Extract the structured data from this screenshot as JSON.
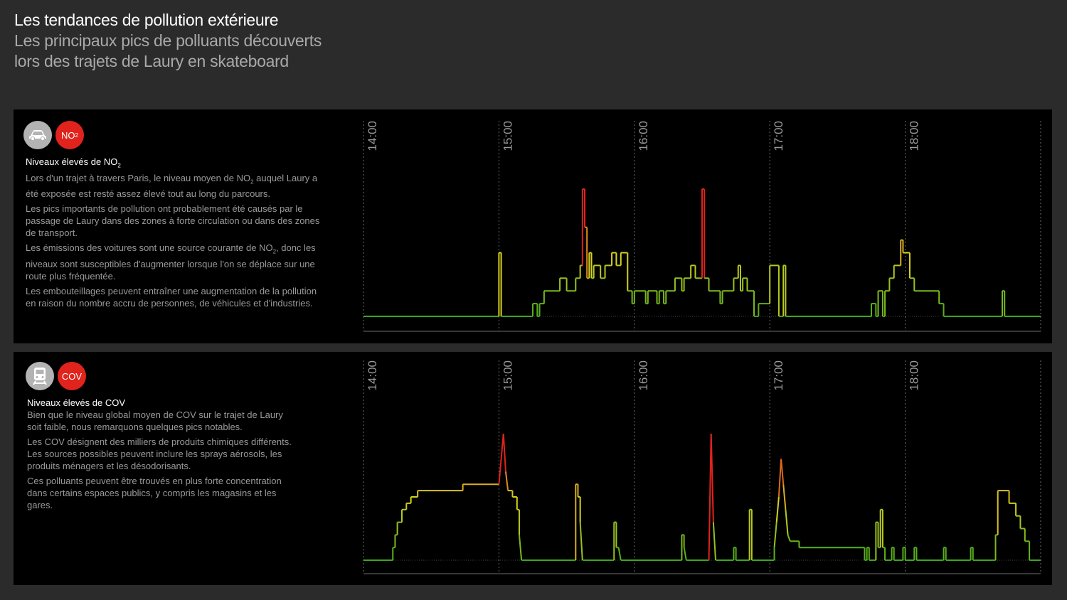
{
  "header": {
    "title": "Les tendances de pollution extérieure",
    "subtitle_line1": "Les principaux pics de polluants découverts",
    "subtitle_line2": "lors des trajets de Laury en skateboard"
  },
  "panels": [
    {
      "icon": "car-icon",
      "badge_label": "NO",
      "badge_sub": "2",
      "heading_main": "Niveaux élevés de NO",
      "heading_sub": "2",
      "p1_a": "Lors d'un trajet à travers Paris, le niveau moyen de NO",
      "p1_sub": "2",
      "p1_b": " auquel Laury a été exposée est resté assez élevé tout au long du parcours.",
      "p2": "Les pics importants de pollution ont probablement été causés par le passage de Laury dans des zones à forte circulation ou dans des zones de transport.",
      "p3_a": "Les émissions des voitures sont une source courante de NO",
      "p3_sub": "2",
      "p3_b": ", donc les niveaux sont susceptibles d'augmenter lorsque l'on se déplace sur une route plus fréquentée.",
      "p4": "Les embouteillages peuvent entraîner une augmentation de la pollution en raison du nombre accru de personnes, de véhicules et d'industries."
    },
    {
      "icon": "train-icon",
      "badge_label": "COV",
      "heading_main": "Niveaux élevés de COV",
      "p1": "Bien que le niveau global moyen de COV sur le trajet de Laury soit faible, nous remarquons quelques pics notables.",
      "p2": "Les COV désignent des milliers de produits chimiques différents. Les sources possibles peuvent inclure les sprays aérosols, les produits ménagers et les désodorisants.",
      "p3": "Ces polluants peuvent être trouvés en plus forte concentration dans certains espaces publics, y compris  les magasins et les gares."
    }
  ],
  "colors": {
    "low": "#3aa81c",
    "mid": "#d7d21e",
    "high": "#e0231c",
    "badge_red": "#e0231c",
    "grid": "#6b6b6b"
  },
  "chart_data": [
    {
      "type": "line",
      "series_name": "NO2",
      "x_ticks": [
        "14:00",
        "15:00",
        "16:00",
        "17:00",
        "18:00"
      ],
      "x_range": [
        "14:00",
        "19:00"
      ],
      "y_range": [
        0,
        1
      ],
      "grid": "vertical dashed at each hour",
      "points": [
        [
          "14:00",
          0.0
        ],
        [
          "15:00",
          0.0
        ],
        [
          "15:00",
          0.5
        ],
        [
          "15:01",
          0.5
        ],
        [
          "15:01",
          0.0
        ],
        [
          "15:15",
          0.0
        ],
        [
          "15:15",
          0.1
        ],
        [
          "15:17",
          0.1
        ],
        [
          "15:17",
          0.0
        ],
        [
          "15:18",
          0.0
        ],
        [
          "15:18",
          0.1
        ],
        [
          "15:20",
          0.1
        ],
        [
          "15:20",
          0.2
        ],
        [
          "15:27",
          0.2
        ],
        [
          "15:27",
          0.3
        ],
        [
          "15:30",
          0.3
        ],
        [
          "15:30",
          0.2
        ],
        [
          "15:34",
          0.2
        ],
        [
          "15:34",
          0.3
        ],
        [
          "15:36",
          0.3
        ],
        [
          "15:36",
          0.4
        ],
        [
          "15:37",
          0.4
        ],
        [
          "15:37",
          1.0
        ],
        [
          "15:38",
          1.0
        ],
        [
          "15:38",
          0.7
        ],
        [
          "15:39",
          0.7
        ],
        [
          "15:39",
          0.3
        ],
        [
          "15:40",
          0.3
        ],
        [
          "15:40",
          0.5
        ],
        [
          "15:41",
          0.5
        ],
        [
          "15:41",
          0.3
        ],
        [
          "15:42",
          0.3
        ],
        [
          "15:42",
          0.4
        ],
        [
          "15:45",
          0.4
        ],
        [
          "15:45",
          0.3
        ],
        [
          "15:47",
          0.3
        ],
        [
          "15:47",
          0.4
        ],
        [
          "15:50",
          0.4
        ],
        [
          "15:50",
          0.5
        ],
        [
          "15:52",
          0.5
        ],
        [
          "15:52",
          0.4
        ],
        [
          "15:54",
          0.4
        ],
        [
          "15:54",
          0.5
        ],
        [
          "15:57",
          0.5
        ],
        [
          "15:57",
          0.2
        ],
        [
          "15:59",
          0.2
        ],
        [
          "15:59",
          0.1
        ],
        [
          "16:00",
          0.1
        ],
        [
          "16:00",
          0.2
        ],
        [
          "16:05",
          0.2
        ],
        [
          "16:05",
          0.1
        ],
        [
          "16:06",
          0.1
        ],
        [
          "16:06",
          0.2
        ],
        [
          "16:10",
          0.2
        ],
        [
          "16:10",
          0.1
        ],
        [
          "16:11",
          0.1
        ],
        [
          "16:11",
          0.2
        ],
        [
          "16:13",
          0.2
        ],
        [
          "16:13",
          0.1
        ],
        [
          "16:14",
          0.1
        ],
        [
          "16:14",
          0.2
        ],
        [
          "16:18",
          0.2
        ],
        [
          "16:18",
          0.3
        ],
        [
          "16:21",
          0.3
        ],
        [
          "16:21",
          0.2
        ],
        [
          "16:22",
          0.2
        ],
        [
          "16:22",
          0.3
        ],
        [
          "16:25",
          0.3
        ],
        [
          "16:25",
          0.4
        ],
        [
          "16:27",
          0.4
        ],
        [
          "16:27",
          0.3
        ],
        [
          "16:30",
          0.3
        ],
        [
          "16:30",
          1.0
        ],
        [
          "16:31",
          1.0
        ],
        [
          "16:31",
          0.3
        ],
        [
          "16:33",
          0.3
        ],
        [
          "16:33",
          0.2
        ],
        [
          "16:38",
          0.2
        ],
        [
          "16:38",
          0.1
        ],
        [
          "16:39",
          0.1
        ],
        [
          "16:39",
          0.2
        ],
        [
          "16:44",
          0.2
        ],
        [
          "16:44",
          0.3
        ],
        [
          "16:46",
          0.3
        ],
        [
          "16:46",
          0.4
        ],
        [
          "16:47",
          0.4
        ],
        [
          "16:47",
          0.2
        ],
        [
          "16:48",
          0.2
        ],
        [
          "16:48",
          0.3
        ],
        [
          "16:50",
          0.3
        ],
        [
          "16:50",
          0.2
        ],
        [
          "16:53",
          0.2
        ],
        [
          "16:53",
          0.0
        ],
        [
          "16:55",
          0.0
        ],
        [
          "16:55",
          0.1
        ],
        [
          "17:00",
          0.1
        ],
        [
          "17:00",
          0.4
        ],
        [
          "17:04",
          0.4
        ],
        [
          "17:04",
          0.0
        ],
        [
          "17:06",
          0.0
        ],
        [
          "17:06",
          0.4
        ],
        [
          "17:07",
          0.4
        ],
        [
          "17:07",
          0.0
        ],
        [
          "17:45",
          0.0
        ],
        [
          "17:45",
          0.1
        ],
        [
          "17:47",
          0.1
        ],
        [
          "17:47",
          0.0
        ],
        [
          "17:48",
          0.0
        ],
        [
          "17:48",
          0.2
        ],
        [
          "17:50",
          0.2
        ],
        [
          "17:50",
          0.0
        ],
        [
          "17:51",
          0.0
        ],
        [
          "17:51",
          0.2
        ],
        [
          "17:53",
          0.2
        ],
        [
          "17:53",
          0.3
        ],
        [
          "17:55",
          0.3
        ],
        [
          "17:55",
          0.4
        ],
        [
          "17:58",
          0.4
        ],
        [
          "17:58",
          0.6
        ],
        [
          "17:59",
          0.6
        ],
        [
          "17:59",
          0.5
        ],
        [
          "18:02",
          0.5
        ],
        [
          "18:02",
          0.3
        ],
        [
          "18:04",
          0.3
        ],
        [
          "18:04",
          0.2
        ],
        [
          "18:15",
          0.2
        ],
        [
          "18:15",
          0.1
        ],
        [
          "18:17",
          0.1
        ],
        [
          "18:17",
          0.0
        ],
        [
          "18:43",
          0.0
        ],
        [
          "18:43",
          0.2
        ],
        [
          "18:44",
          0.2
        ],
        [
          "18:44",
          0.0
        ],
        [
          "19:00",
          0.0
        ]
      ]
    },
    {
      "type": "line",
      "series_name": "COV",
      "x_ticks": [
        "14:00",
        "15:00",
        "16:00",
        "17:00",
        "18:00"
      ],
      "x_range": [
        "14:00",
        "19:00"
      ],
      "y_range": [
        0,
        1
      ],
      "grid": "vertical dashed at each hour",
      "points": [
        [
          "14:00",
          0.0
        ],
        [
          "14:13",
          0.0
        ],
        [
          "14:13",
          0.1
        ],
        [
          "14:14",
          0.1
        ],
        [
          "14:14",
          0.2
        ],
        [
          "14:15",
          0.2
        ],
        [
          "14:15",
          0.3
        ],
        [
          "14:17",
          0.3
        ],
        [
          "14:17",
          0.4
        ],
        [
          "14:19",
          0.4
        ],
        [
          "14:19",
          0.45
        ],
        [
          "14:21",
          0.45
        ],
        [
          "14:21",
          0.5
        ],
        [
          "14:24",
          0.5
        ],
        [
          "14:24",
          0.55
        ],
        [
          "14:44",
          0.55
        ],
        [
          "14:44",
          0.6
        ],
        [
          "15:00",
          0.6
        ],
        [
          "15:02",
          1.0
        ],
        [
          "15:03",
          0.7
        ],
        [
          "15:04",
          0.55
        ],
        [
          "15:06",
          0.55
        ],
        [
          "15:06",
          0.5
        ],
        [
          "15:08",
          0.5
        ],
        [
          "15:08",
          0.4
        ],
        [
          "15:09",
          0.4
        ],
        [
          "15:09",
          0.2
        ],
        [
          "15:10",
          0.0
        ],
        [
          "15:34",
          0.0
        ],
        [
          "15:34",
          0.6
        ],
        [
          "15:35",
          0.6
        ],
        [
          "15:35",
          0.5
        ],
        [
          "15:36",
          0.5
        ],
        [
          "15:36",
          0.3
        ],
        [
          "15:37",
          0.0
        ],
        [
          "15:51",
          0.0
        ],
        [
          "15:51",
          0.3
        ],
        [
          "15:52",
          0.3
        ],
        [
          "15:52",
          0.1
        ],
        [
          "15:53",
          0.1
        ],
        [
          "15:54",
          0.0
        ],
        [
          "16:21",
          0.0
        ],
        [
          "16:21",
          0.2
        ],
        [
          "16:22",
          0.2
        ],
        [
          "16:22",
          0.1
        ],
        [
          "16:23",
          0.0
        ],
        [
          "16:33",
          0.0
        ],
        [
          "16:34",
          1.0
        ],
        [
          "16:35",
          0.3
        ],
        [
          "16:36",
          0.0
        ],
        [
          "16:44",
          0.0
        ],
        [
          "16:44",
          0.1
        ],
        [
          "16:45",
          0.1
        ],
        [
          "16:45",
          0.0
        ],
        [
          "16:51",
          0.0
        ],
        [
          "16:51",
          0.4
        ],
        [
          "16:52",
          0.4
        ],
        [
          "16:52",
          0.0
        ],
        [
          "17:02",
          0.0
        ],
        [
          "17:02",
          0.1
        ],
        [
          "17:03",
          0.3
        ],
        [
          "17:04",
          0.5
        ],
        [
          "17:05",
          0.8
        ],
        [
          "17:06",
          0.6
        ],
        [
          "17:07",
          0.4
        ],
        [
          "17:08",
          0.2
        ],
        [
          "17:09",
          0.15
        ],
        [
          "17:13",
          0.15
        ],
        [
          "17:13",
          0.1
        ],
        [
          "17:42",
          0.1
        ],
        [
          "17:42",
          0.0
        ],
        [
          "17:43",
          0.0
        ],
        [
          "17:43",
          0.1
        ],
        [
          "17:44",
          0.1
        ],
        [
          "17:44",
          0.0
        ],
        [
          "17:47",
          0.0
        ],
        [
          "17:47",
          0.3
        ],
        [
          "17:48",
          0.3
        ],
        [
          "17:48",
          0.1
        ],
        [
          "17:49",
          0.1
        ],
        [
          "17:49",
          0.4
        ],
        [
          "17:50",
          0.4
        ],
        [
          "17:50",
          0.1
        ],
        [
          "17:51",
          0.1
        ],
        [
          "17:51",
          0.0
        ],
        [
          "17:54",
          0.0
        ],
        [
          "17:54",
          0.1
        ],
        [
          "17:55",
          0.1
        ],
        [
          "17:55",
          0.0
        ],
        [
          "17:59",
          0.0
        ],
        [
          "17:59",
          0.1
        ],
        [
          "18:00",
          0.1
        ],
        [
          "18:00",
          0.0
        ],
        [
          "18:04",
          0.0
        ],
        [
          "18:04",
          0.1
        ],
        [
          "18:05",
          0.1
        ],
        [
          "18:05",
          0.0
        ],
        [
          "18:17",
          0.0
        ],
        [
          "18:17",
          0.1
        ],
        [
          "18:18",
          0.1
        ],
        [
          "18:18",
          0.0
        ],
        [
          "18:29",
          0.0
        ],
        [
          "18:29",
          0.1
        ],
        [
          "18:30",
          0.1
        ],
        [
          "18:30",
          0.0
        ],
        [
          "18:40",
          0.0
        ],
        [
          "18:40",
          0.2
        ],
        [
          "18:41",
          0.2
        ],
        [
          "18:41",
          0.55
        ],
        [
          "18:46",
          0.55
        ],
        [
          "18:46",
          0.45
        ],
        [
          "18:49",
          0.45
        ],
        [
          "18:49",
          0.35
        ],
        [
          "18:51",
          0.35
        ],
        [
          "18:51",
          0.25
        ],
        [
          "18:53",
          0.25
        ],
        [
          "18:53",
          0.15
        ],
        [
          "18:55",
          0.15
        ],
        [
          "18:55",
          0.0
        ],
        [
          "19:00",
          0.0
        ]
      ]
    }
  ]
}
